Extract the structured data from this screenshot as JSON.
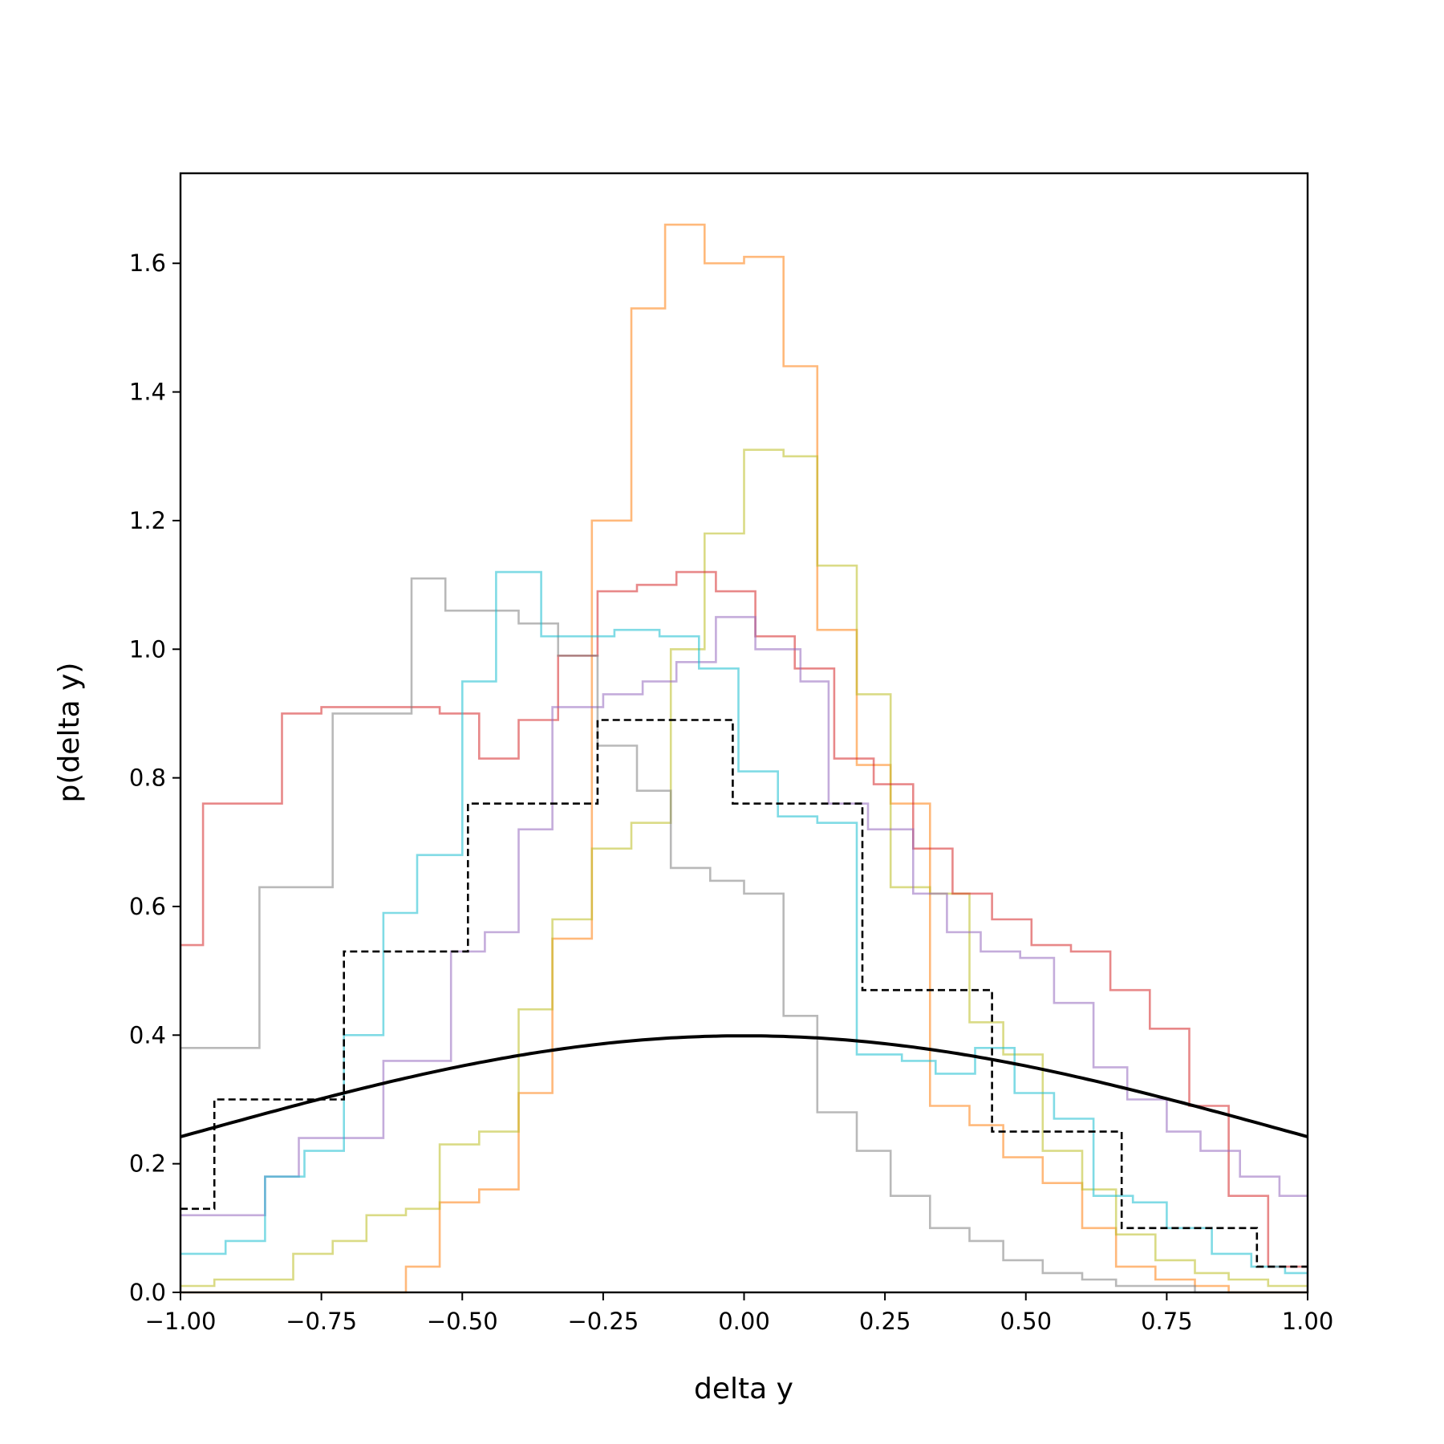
{
  "chart_data": {
    "type": "histogram-step",
    "xlabel": "delta y",
    "ylabel": "p(delta y)",
    "xlim": [
      -1.0,
      1.0
    ],
    "ylim": [
      0.0,
      1.74
    ],
    "xticks": [
      "−1.00",
      "−0.75",
      "−0.50",
      "−0.25",
      "0.00",
      "0.25",
      "0.50",
      "0.75",
      "1.00"
    ],
    "yticks": [
      "0.0",
      "0.2",
      "0.4",
      "0.6",
      "0.8",
      "1.0",
      "1.2",
      "1.4",
      "1.6"
    ],
    "grid": false,
    "legend": "none",
    "series": [
      {
        "color": "#ff7f0e",
        "edges": [
          -1.0,
          -0.94,
          -0.87,
          -0.8,
          -0.74,
          -0.67,
          -0.6,
          -0.54,
          -0.47,
          -0.4,
          -0.34,
          -0.27,
          -0.2,
          -0.14,
          -0.07,
          0.0,
          0.07,
          0.13,
          0.2,
          0.26,
          0.33,
          0.4,
          0.46,
          0.53,
          0.6,
          0.66,
          0.73,
          0.8,
          0.86,
          0.93,
          1.0
        ],
        "values": [
          0.0,
          0.0,
          0.0,
          0.0,
          0.0,
          0.0,
          0.04,
          0.14,
          0.16,
          0.31,
          0.55,
          1.2,
          1.53,
          1.66,
          1.6,
          1.61,
          1.44,
          1.03,
          0.82,
          0.76,
          0.29,
          0.26,
          0.21,
          0.17,
          0.1,
          0.04,
          0.02,
          0.01,
          0.0,
          0.0
        ]
      },
      {
        "color": "#bcbd22",
        "edges": [
          -1.0,
          -0.94,
          -0.86,
          -0.8,
          -0.73,
          -0.67,
          -0.6,
          -0.54,
          -0.47,
          -0.4,
          -0.34,
          -0.27,
          -0.2,
          -0.13,
          -0.07,
          0.0,
          0.07,
          0.13,
          0.2,
          0.26,
          0.33,
          0.4,
          0.46,
          0.53,
          0.6,
          0.66,
          0.73,
          0.8,
          0.86,
          0.93,
          1.0
        ],
        "values": [
          0.01,
          0.02,
          0.02,
          0.06,
          0.08,
          0.12,
          0.13,
          0.23,
          0.25,
          0.44,
          0.58,
          0.69,
          0.73,
          1.0,
          1.18,
          1.31,
          1.3,
          1.13,
          0.93,
          0.63,
          0.62,
          0.42,
          0.37,
          0.22,
          0.16,
          0.09,
          0.05,
          0.03,
          0.02,
          0.01
        ]
      },
      {
        "color": "#d62728",
        "edges": [
          -1.0,
          -0.96,
          -0.89,
          -0.82,
          -0.75,
          -0.68,
          -0.61,
          -0.54,
          -0.47,
          -0.4,
          -0.33,
          -0.26,
          -0.19,
          -0.12,
          -0.05,
          0.02,
          0.09,
          0.16,
          0.23,
          0.3,
          0.37,
          0.44,
          0.51,
          0.58,
          0.65,
          0.72,
          0.79,
          0.86,
          0.93,
          1.0
        ],
        "values": [
          0.54,
          0.76,
          0.76,
          0.9,
          0.91,
          0.91,
          0.91,
          0.9,
          0.83,
          0.89,
          0.99,
          1.09,
          1.1,
          1.12,
          1.09,
          1.02,
          0.97,
          0.83,
          0.79,
          0.69,
          0.62,
          0.58,
          0.54,
          0.53,
          0.47,
          0.41,
          0.29,
          0.15,
          0.04
        ]
      },
      {
        "color": "#9467bd",
        "edges": [
          -1.0,
          -0.92,
          -0.85,
          -0.79,
          -0.72,
          -0.64,
          -0.58,
          -0.52,
          -0.46,
          -0.4,
          -0.34,
          -0.25,
          -0.18,
          -0.12,
          -0.05,
          0.02,
          0.1,
          0.15,
          0.22,
          0.3,
          0.36,
          0.42,
          0.49,
          0.55,
          0.62,
          0.68,
          0.75,
          0.81,
          0.88,
          0.95,
          1.0
        ],
        "values": [
          0.12,
          0.12,
          0.18,
          0.24,
          0.24,
          0.36,
          0.36,
          0.53,
          0.56,
          0.72,
          0.91,
          0.93,
          0.95,
          0.98,
          1.05,
          1.0,
          0.95,
          0.76,
          0.72,
          0.62,
          0.56,
          0.53,
          0.52,
          0.45,
          0.35,
          0.3,
          0.25,
          0.22,
          0.18,
          0.15
        ]
      },
      {
        "color": "#7f7f7f",
        "edges": [
          -1.0,
          -0.94,
          -0.86,
          -0.8,
          -0.73,
          -0.66,
          -0.59,
          -0.53,
          -0.46,
          -0.4,
          -0.33,
          -0.26,
          -0.19,
          -0.13,
          -0.06,
          0.0,
          0.07,
          0.13,
          0.2,
          0.26,
          0.33,
          0.4,
          0.46,
          0.53,
          0.6,
          0.66,
          0.73,
          0.8,
          0.86,
          0.93,
          1.0
        ],
        "values": [
          0.38,
          0.38,
          0.63,
          0.63,
          0.9,
          0.9,
          1.11,
          1.06,
          1.06,
          1.04,
          0.99,
          0.85,
          0.78,
          0.66,
          0.64,
          0.62,
          0.43,
          0.28,
          0.22,
          0.15,
          0.1,
          0.08,
          0.05,
          0.03,
          0.02,
          0.01,
          0.01,
          0.0,
          0.0,
          0.0
        ]
      },
      {
        "color": "#17becf",
        "edges": [
          -1.0,
          -0.92,
          -0.85,
          -0.78,
          -0.71,
          -0.64,
          -0.58,
          -0.5,
          -0.44,
          -0.36,
          -0.3,
          -0.23,
          -0.15,
          -0.08,
          -0.01,
          0.06,
          0.13,
          0.2,
          0.28,
          0.34,
          0.41,
          0.48,
          0.55,
          0.62,
          0.69,
          0.75,
          0.83,
          0.9,
          0.96,
          1.0
        ],
        "values": [
          0.06,
          0.08,
          0.18,
          0.22,
          0.4,
          0.59,
          0.68,
          0.95,
          1.12,
          1.02,
          1.02,
          1.03,
          1.02,
          0.97,
          0.81,
          0.74,
          0.73,
          0.37,
          0.36,
          0.34,
          0.38,
          0.31,
          0.27,
          0.15,
          0.14,
          0.1,
          0.06,
          0.04,
          0.03
        ]
      }
    ],
    "reference_histogram": {
      "color": "#000000",
      "style": "dashed",
      "edges": [
        -1.0,
        -0.94,
        -0.71,
        -0.49,
        -0.26,
        -0.02,
        0.21,
        0.44,
        0.67,
        0.91,
        1.0
      ],
      "values": [
        0.13,
        0.3,
        0.53,
        0.76,
        0.89,
        0.76,
        0.47,
        0.25,
        0.1,
        0.04
      ]
    },
    "curve": {
      "color": "#000000",
      "type": "normal-pdf",
      "mean": 0.0,
      "std": 1.0,
      "x": [
        -1.0,
        -0.75,
        -0.5,
        -0.25,
        0.0,
        0.25,
        0.5,
        0.75,
        1.0
      ],
      "y": [
        0.242,
        0.301,
        0.352,
        0.387,
        0.399,
        0.387,
        0.352,
        0.301,
        0.242
      ]
    }
  }
}
